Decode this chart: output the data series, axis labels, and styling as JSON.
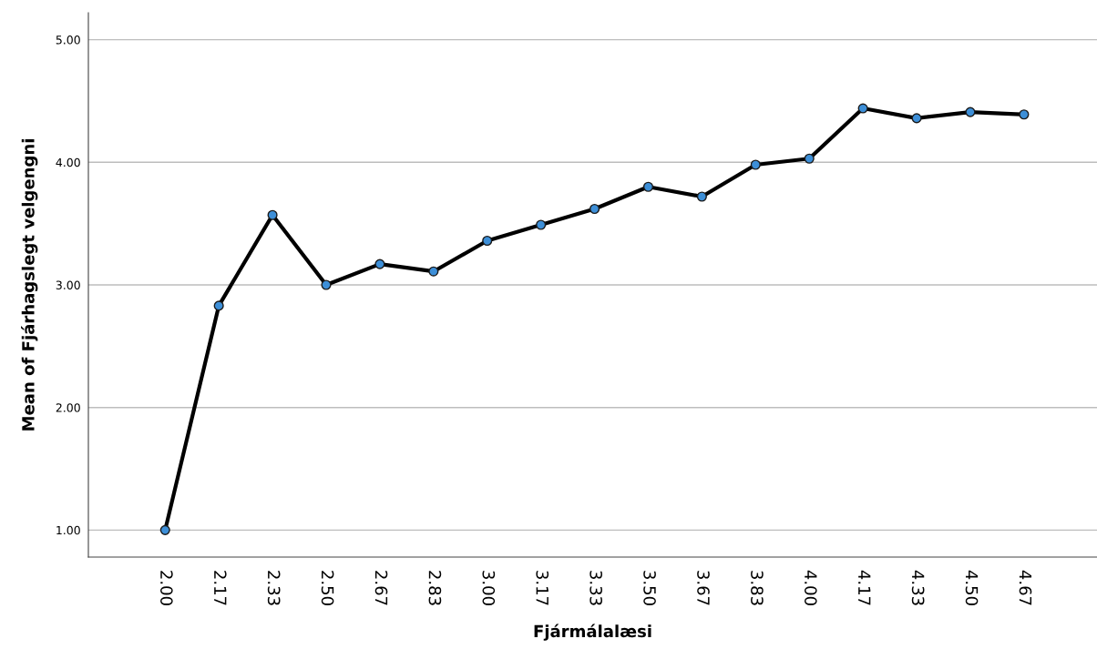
{
  "chart_data": {
    "type": "line",
    "xlabel": "Fjármálalæsi",
    "ylabel": "Mean of Fjárhagslegt velgengni",
    "categories": [
      "2.00",
      "2.17",
      "2.33",
      "2.50",
      "2.67",
      "2.83",
      "3.00",
      "3.17",
      "3.33",
      "3.50",
      "3.67",
      "3.83",
      "4.00",
      "4.17",
      "4.33",
      "4.50",
      "4.67"
    ],
    "series": [
      {
        "color": "#3d8fd8",
        "values": [
          1.0,
          2.83,
          3.57,
          3.0,
          3.17,
          3.11,
          3.36,
          3.49,
          3.62,
          3.8,
          3.72,
          3.98,
          4.03,
          4.44,
          4.36,
          4.41,
          4.39
        ]
      }
    ],
    "ylim": [
      0.78,
      5.22
    ],
    "yticks": [
      {
        "value": 1,
        "label": "1.00"
      },
      {
        "value": 2,
        "label": "2.00"
      },
      {
        "value": 3,
        "label": "3.00"
      },
      {
        "value": 4,
        "label": "4.00"
      },
      {
        "value": 5,
        "label": "5.00"
      }
    ],
    "grid": "y",
    "marker": "circle",
    "line_style": "solid"
  }
}
